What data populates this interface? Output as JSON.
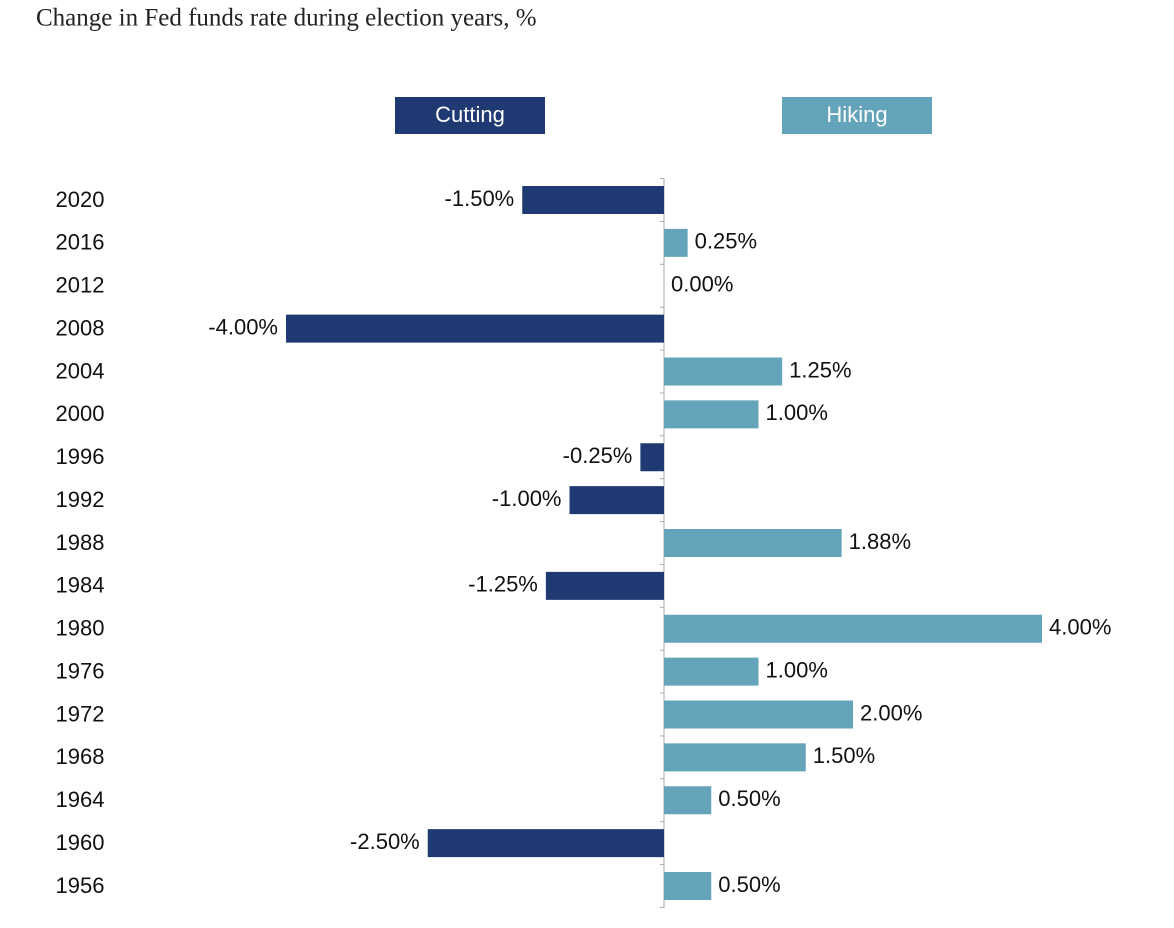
{
  "chart_data": {
    "type": "diverging-bar",
    "title": "Change in Fed funds rate during election years, %",
    "categories": [
      "2020",
      "2016",
      "2012",
      "2008",
      "2004",
      "2000",
      "1996",
      "1992",
      "1988",
      "1984",
      "1980",
      "1976",
      "1972",
      "1968",
      "1964",
      "1960",
      "1956"
    ],
    "series": [
      {
        "name": "Cutting",
        "color": "#1f3a73",
        "values": [
          -1.5,
          null,
          null,
          -4,
          null,
          null,
          -0.25,
          -1,
          null,
          -1.25,
          null,
          null,
          null,
          null,
          null,
          -2.5,
          null
        ],
        "value_labels": [
          "-1.50%",
          null,
          null,
          "-4.00%",
          null,
          null,
          "-0.25%",
          "-1.00%",
          null,
          "-1.25%",
          null,
          null,
          null,
          null,
          null,
          "-2.50%",
          null
        ]
      },
      {
        "name": "Hiking",
        "color": "#64a4bb",
        "values": [
          null,
          0.25,
          0,
          null,
          1.25,
          1,
          null,
          null,
          1.88,
          null,
          4,
          1,
          2,
          1.5,
          0.5,
          null,
          0.5
        ],
        "value_labels": [
          null,
          "0.25%",
          "0.00%",
          null,
          "1.25%",
          "1.00%",
          null,
          null,
          "1.88%",
          null,
          "4.00%",
          "1.00%",
          "2.00%",
          "1.50%",
          "0.50%",
          null,
          "0.50%"
        ]
      }
    ]
  }
}
